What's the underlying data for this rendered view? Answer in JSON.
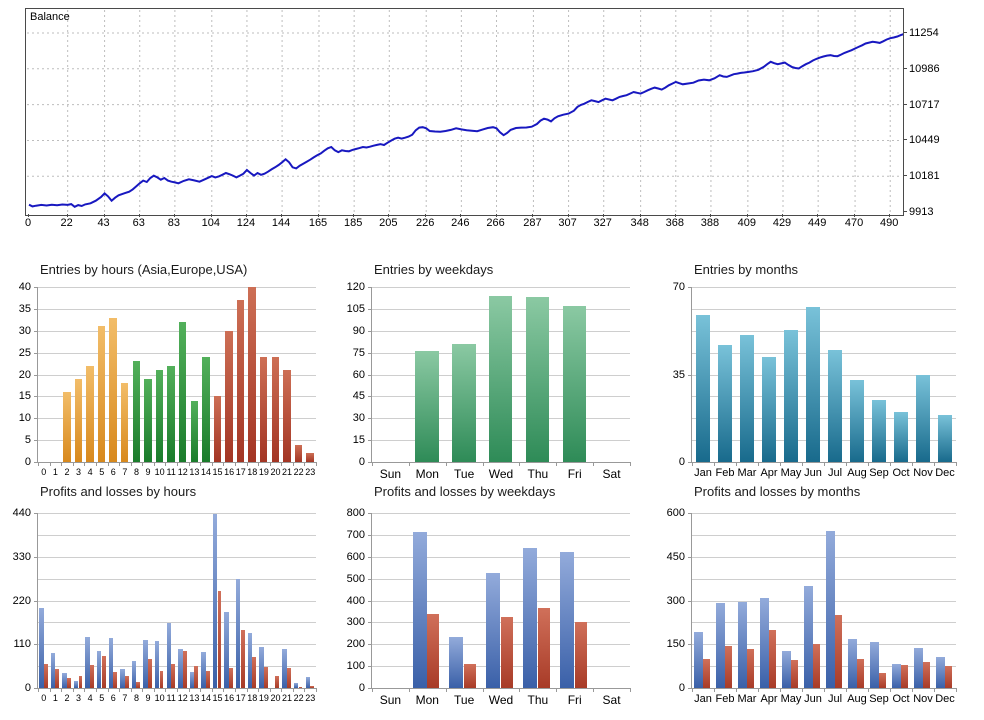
{
  "chart_data": [
    {
      "id": "balance",
      "type": "line",
      "label": "Balance",
      "line_color": "#1818c0",
      "grid": "dashed",
      "y_ticks": [
        9913,
        10181,
        10449,
        10717,
        10986,
        11254
      ],
      "x_ticks": [
        0,
        22,
        43,
        63,
        83,
        104,
        124,
        144,
        165,
        185,
        205,
        226,
        246,
        266,
        287,
        307,
        327,
        348,
        368,
        388,
        409,
        429,
        449,
        470,
        490
      ],
      "ylim": [
        9913,
        11254
      ],
      "xlim": [
        0,
        500
      ],
      "points": [
        [
          0,
          9968
        ],
        [
          2,
          9955
        ],
        [
          4,
          9960
        ],
        [
          7,
          9966
        ],
        [
          10,
          9962
        ],
        [
          13,
          9968
        ],
        [
          16,
          9964
        ],
        [
          19,
          9969
        ],
        [
          22,
          9966
        ],
        [
          24,
          9972
        ],
        [
          26,
          9952
        ],
        [
          28,
          9965
        ],
        [
          30,
          9958
        ],
        [
          32,
          9970
        ],
        [
          35,
          9978
        ],
        [
          38,
          9998
        ],
        [
          41,
          10025
        ],
        [
          43,
          10052
        ],
        [
          45,
          10030
        ],
        [
          47,
          9998
        ],
        [
          49,
          10020
        ],
        [
          51,
          10038
        ],
        [
          54,
          10052
        ],
        [
          57,
          10065
        ],
        [
          59,
          10082
        ],
        [
          61,
          10105
        ],
        [
          63,
          10128
        ],
        [
          65,
          10148
        ],
        [
          67,
          10138
        ],
        [
          69,
          10168
        ],
        [
          71,
          10185
        ],
        [
          73,
          10172
        ],
        [
          75,
          10155
        ],
        [
          77,
          10168
        ],
        [
          79,
          10148
        ],
        [
          81,
          10140
        ],
        [
          83,
          10135
        ],
        [
          85,
          10128
        ],
        [
          88,
          10146
        ],
        [
          91,
          10158
        ],
        [
          94,
          10150
        ],
        [
          97,
          10140
        ],
        [
          100,
          10158
        ],
        [
          102,
          10170
        ],
        [
          104,
          10182
        ],
        [
          106,
          10172
        ],
        [
          108,
          10180
        ],
        [
          110,
          10192
        ],
        [
          112,
          10205
        ],
        [
          114,
          10196
        ],
        [
          116,
          10186
        ],
        [
          118,
          10172
        ],
        [
          120,
          10186
        ],
        [
          122,
          10200
        ],
        [
          124,
          10228
        ],
        [
          126,
          10205
        ],
        [
          128,
          10186
        ],
        [
          130,
          10205
        ],
        [
          132,
          10192
        ],
        [
          134,
          10200
        ],
        [
          136,
          10215
        ],
        [
          138,
          10232
        ],
        [
          140,
          10248
        ],
        [
          142,
          10265
        ],
        [
          144,
          10285
        ],
        [
          146,
          10308
        ],
        [
          148,
          10285
        ],
        [
          150,
          10248
        ],
        [
          152,
          10240
        ],
        [
          154,
          10260
        ],
        [
          156,
          10275
        ],
        [
          158,
          10290
        ],
        [
          160,
          10305
        ],
        [
          162,
          10322
        ],
        [
          164,
          10338
        ],
        [
          166,
          10352
        ],
        [
          168,
          10372
        ],
        [
          170,
          10390
        ],
        [
          172,
          10400
        ],
        [
          174,
          10375
        ],
        [
          176,
          10362
        ],
        [
          178,
          10375
        ],
        [
          180,
          10370
        ],
        [
          182,
          10368
        ],
        [
          184,
          10378
        ],
        [
          186,
          10385
        ],
        [
          188,
          10392
        ],
        [
          190,
          10400
        ],
        [
          192,
          10396
        ],
        [
          194,
          10402
        ],
        [
          196,
          10410
        ],
        [
          198,
          10416
        ],
        [
          200,
          10422
        ],
        [
          202,
          10415
        ],
        [
          204,
          10432
        ],
        [
          206,
          10448
        ],
        [
          208,
          10462
        ],
        [
          210,
          10470
        ],
        [
          212,
          10463
        ],
        [
          214,
          10470
        ],
        [
          216,
          10478
        ],
        [
          218,
          10492
        ],
        [
          220,
          10525
        ],
        [
          222,
          10545
        ],
        [
          224,
          10548
        ],
        [
          226,
          10540
        ],
        [
          228,
          10520
        ],
        [
          231,
          10516
        ],
        [
          234,
          10514
        ],
        [
          237,
          10520
        ],
        [
          240,
          10528
        ],
        [
          243,
          10540
        ],
        [
          246,
          10532
        ],
        [
          249,
          10526
        ],
        [
          252,
          10522
        ],
        [
          255,
          10518
        ],
        [
          258,
          10530
        ],
        [
          261,
          10542
        ],
        [
          264,
          10548
        ],
        [
          266,
          10540
        ],
        [
          268,
          10510
        ],
        [
          270,
          10488
        ],
        [
          272,
          10505
        ],
        [
          274,
          10528
        ],
        [
          277,
          10542
        ],
        [
          280,
          10545
        ],
        [
          283,
          10546
        ],
        [
          286,
          10552
        ],
        [
          289,
          10572
        ],
        [
          291,
          10598
        ],
        [
          293,
          10612
        ],
        [
          295,
          10605
        ],
        [
          297,
          10592
        ],
        [
          299,
          10615
        ],
        [
          301,
          10630
        ],
        [
          304,
          10642
        ],
        [
          307,
          10650
        ],
        [
          310,
          10672
        ],
        [
          312,
          10700
        ],
        [
          314,
          10715
        ],
        [
          316,
          10724
        ],
        [
          318,
          10738
        ],
        [
          320,
          10750
        ],
        [
          322,
          10744
        ],
        [
          324,
          10736
        ],
        [
          326,
          10750
        ],
        [
          328,
          10762
        ],
        [
          330,
          10756
        ],
        [
          332,
          10750
        ],
        [
          334,
          10762
        ],
        [
          336,
          10775
        ],
        [
          338,
          10782
        ],
        [
          340,
          10788
        ],
        [
          342,
          10800
        ],
        [
          344,
          10812
        ],
        [
          346,
          10806
        ],
        [
          348,
          10800
        ],
        [
          350,
          10812
        ],
        [
          352,
          10825
        ],
        [
          354,
          10836
        ],
        [
          356,
          10845
        ],
        [
          358,
          10838
        ],
        [
          360,
          10830
        ],
        [
          362,
          10845
        ],
        [
          364,
          10862
        ],
        [
          366,
          10875
        ],
        [
          368,
          10888
        ],
        [
          370,
          10878
        ],
        [
          372,
          10870
        ],
        [
          375,
          10876
        ],
        [
          378,
          10882
        ],
        [
          381,
          10898
        ],
        [
          384,
          10905
        ],
        [
          387,
          10900
        ],
        [
          390,
          10915
        ],
        [
          393,
          10938
        ],
        [
          395,
          10928
        ],
        [
          397,
          10925
        ],
        [
          399,
          10935
        ],
        [
          401,
          10945
        ],
        [
          403,
          10950
        ],
        [
          405,
          10955
        ],
        [
          407,
          10958
        ],
        [
          409,
          10962
        ],
        [
          412,
          10968
        ],
        [
          415,
          10978
        ],
        [
          418,
          11000
        ],
        [
          420,
          11020
        ],
        [
          422,
          11038
        ],
        [
          424,
          11028
        ],
        [
          426,
          11020
        ],
        [
          428,
          11026
        ],
        [
          430,
          11032
        ],
        [
          432,
          11015
        ],
        [
          434,
          11000
        ],
        [
          436,
          10992
        ],
        [
          438,
          10988
        ],
        [
          440,
          11005
        ],
        [
          442,
          11020
        ],
        [
          444,
          11032
        ],
        [
          446,
          11048
        ],
        [
          448,
          11060
        ],
        [
          450,
          11070
        ],
        [
          452,
          11078
        ],
        [
          454,
          11085
        ],
        [
          456,
          11088
        ],
        [
          458,
          11082
        ],
        [
          460,
          11080
        ],
        [
          462,
          11092
        ],
        [
          464,
          11105
        ],
        [
          466,
          11115
        ],
        [
          468,
          11125
        ],
        [
          470,
          11138
        ],
        [
          472,
          11150
        ],
        [
          474,
          11162
        ],
        [
          476,
          11175
        ],
        [
          478,
          11182
        ],
        [
          480,
          11188
        ],
        [
          482,
          11184
        ],
        [
          484,
          11180
        ],
        [
          486,
          11192
        ],
        [
          488,
          11205
        ],
        [
          490,
          11215
        ],
        [
          492,
          11220
        ],
        [
          494,
          11228
        ],
        [
          496,
          11238
        ],
        [
          498,
          11248
        ],
        [
          500,
          11258
        ]
      ]
    },
    {
      "id": "entries-by-hours",
      "type": "bar",
      "title": "Entries by hours (Asia,Europe,USA)",
      "categories": [
        "0",
        "1",
        "2",
        "3",
        "4",
        "5",
        "6",
        "7",
        "8",
        "9",
        "10",
        "11",
        "12",
        "13",
        "14",
        "15",
        "16",
        "17",
        "18",
        "19",
        "20",
        "21",
        "22",
        "23"
      ],
      "values": [
        0,
        0,
        16,
        19,
        22,
        31,
        33,
        18,
        23,
        19,
        21,
        22,
        32,
        14,
        24,
        15,
        30,
        37,
        40,
        24,
        24,
        21,
        4,
        2
      ],
      "ylim": [
        0,
        40
      ],
      "y_labels": [
        0,
        5,
        10,
        15,
        20,
        25,
        30,
        35,
        40
      ],
      "grid_divisions": 8,
      "groups": [
        {
          "label": "Asia",
          "from": 0,
          "to": 7,
          "top": "#f2bd69",
          "bottom": "#d8891d"
        },
        {
          "label": "Europe",
          "from": 8,
          "to": 14,
          "top": "#53b05b",
          "bottom": "#1a7c2b"
        },
        {
          "label": "USA",
          "from": 15,
          "to": 23,
          "top": "#cd6f55",
          "bottom": "#a33524"
        }
      ]
    },
    {
      "id": "entries-by-weekdays",
      "type": "bar",
      "title": "Entries by weekdays",
      "categories": [
        "Sun",
        "Mon",
        "Tue",
        "Wed",
        "Thu",
        "Fri",
        "Sat"
      ],
      "values": [
        0,
        76,
        81,
        114,
        113,
        107,
        0
      ],
      "ylim": [
        0,
        120
      ],
      "y_labels": [
        0,
        15,
        30,
        45,
        60,
        75,
        90,
        105,
        120
      ],
      "grid_divisions": 8,
      "colors": {
        "top": "#8bc9a3",
        "bottom": "#2e8b57"
      }
    },
    {
      "id": "entries-by-months",
      "type": "bar",
      "title": "Entries by months",
      "categories": [
        "Jan",
        "Feb",
        "Mar",
        "Apr",
        "May",
        "Jun",
        "Jul",
        "Aug",
        "Sep",
        "Oct",
        "Nov",
        "Dec"
      ],
      "values": [
        59,
        47,
        51,
        42,
        53,
        62,
        45,
        33,
        25,
        20,
        35,
        19
      ],
      "ylim": [
        0,
        70
      ],
      "y_labels": [
        0,
        35,
        70
      ],
      "grid_divisions": 8,
      "colors": {
        "top": "#79c2d9",
        "bottom": "#186a8c"
      }
    },
    {
      "id": "pl-by-hours",
      "type": "bar",
      "title": "Profits and losses by hours",
      "categories": [
        "0",
        "1",
        "2",
        "3",
        "4",
        "5",
        "6",
        "7",
        "8",
        "9",
        "10",
        "11",
        "12",
        "13",
        "14",
        "15",
        "16",
        "17",
        "18",
        "19",
        "20",
        "21",
        "22",
        "23"
      ],
      "series": [
        {
          "name": "Profits",
          "top": "#93abdb",
          "bottom": "#3a60a8",
          "values": [
            200,
            88,
            38,
            18,
            128,
            92,
            126,
            48,
            67,
            120,
            117,
            164,
            97,
            40,
            90,
            437,
            192,
            275,
            138,
            102,
            0,
            97,
            13,
            28
          ]
        },
        {
          "name": "Losses",
          "top": "#d0705a",
          "bottom": "#a83b27",
          "values": [
            60,
            48,
            26,
            29,
            57,
            80,
            39,
            31,
            14,
            73,
            43,
            61,
            93,
            55,
            42,
            245,
            50,
            146,
            78,
            52,
            29,
            50,
            2,
            5
          ]
        }
      ],
      "ylim": [
        0,
        440
      ],
      "y_labels": [
        0,
        110,
        220,
        330,
        440
      ],
      "grid_divisions": 8
    },
    {
      "id": "pl-by-weekdays",
      "type": "bar",
      "title": "Profits and losses by weekdays",
      "categories": [
        "Sun",
        "Mon",
        "Tue",
        "Wed",
        "Thu",
        "Fri",
        "Sat"
      ],
      "series": [
        {
          "name": "Profits",
          "top": "#93abdb",
          "bottom": "#3a60a8",
          "values": [
            0,
            712,
            234,
            526,
            642,
            621,
            0
          ]
        },
        {
          "name": "Losses",
          "top": "#d0705a",
          "bottom": "#a83b27",
          "values": [
            0,
            338,
            109,
            325,
            368,
            302,
            0
          ]
        }
      ],
      "ylim": [
        0,
        800
      ],
      "y_labels": [
        0,
        100,
        200,
        300,
        400,
        500,
        600,
        700,
        800
      ],
      "grid_divisions": 8
    },
    {
      "id": "pl-by-months",
      "type": "bar",
      "title": "Profits and losses by months",
      "categories": [
        "Jan",
        "Feb",
        "Mar",
        "Apr",
        "May",
        "Jun",
        "Jul",
        "Aug",
        "Sep",
        "Oct",
        "Nov",
        "Dec"
      ],
      "series": [
        {
          "name": "Profits",
          "top": "#93abdb",
          "bottom": "#3a60a8",
          "values": [
            193,
            291,
            296,
            308,
            128,
            349,
            540,
            167,
            159,
            83,
            136,
            105
          ]
        },
        {
          "name": "Losses",
          "top": "#d0705a",
          "bottom": "#a83b27",
          "values": [
            99,
            145,
            133,
            199,
            97,
            152,
            251,
            98,
            52,
            80,
            88,
            77
          ]
        }
      ],
      "ylim": [
        0,
        600
      ],
      "y_labels": [
        0,
        150,
        300,
        450,
        600
      ],
      "grid_divisions": 8
    }
  ]
}
